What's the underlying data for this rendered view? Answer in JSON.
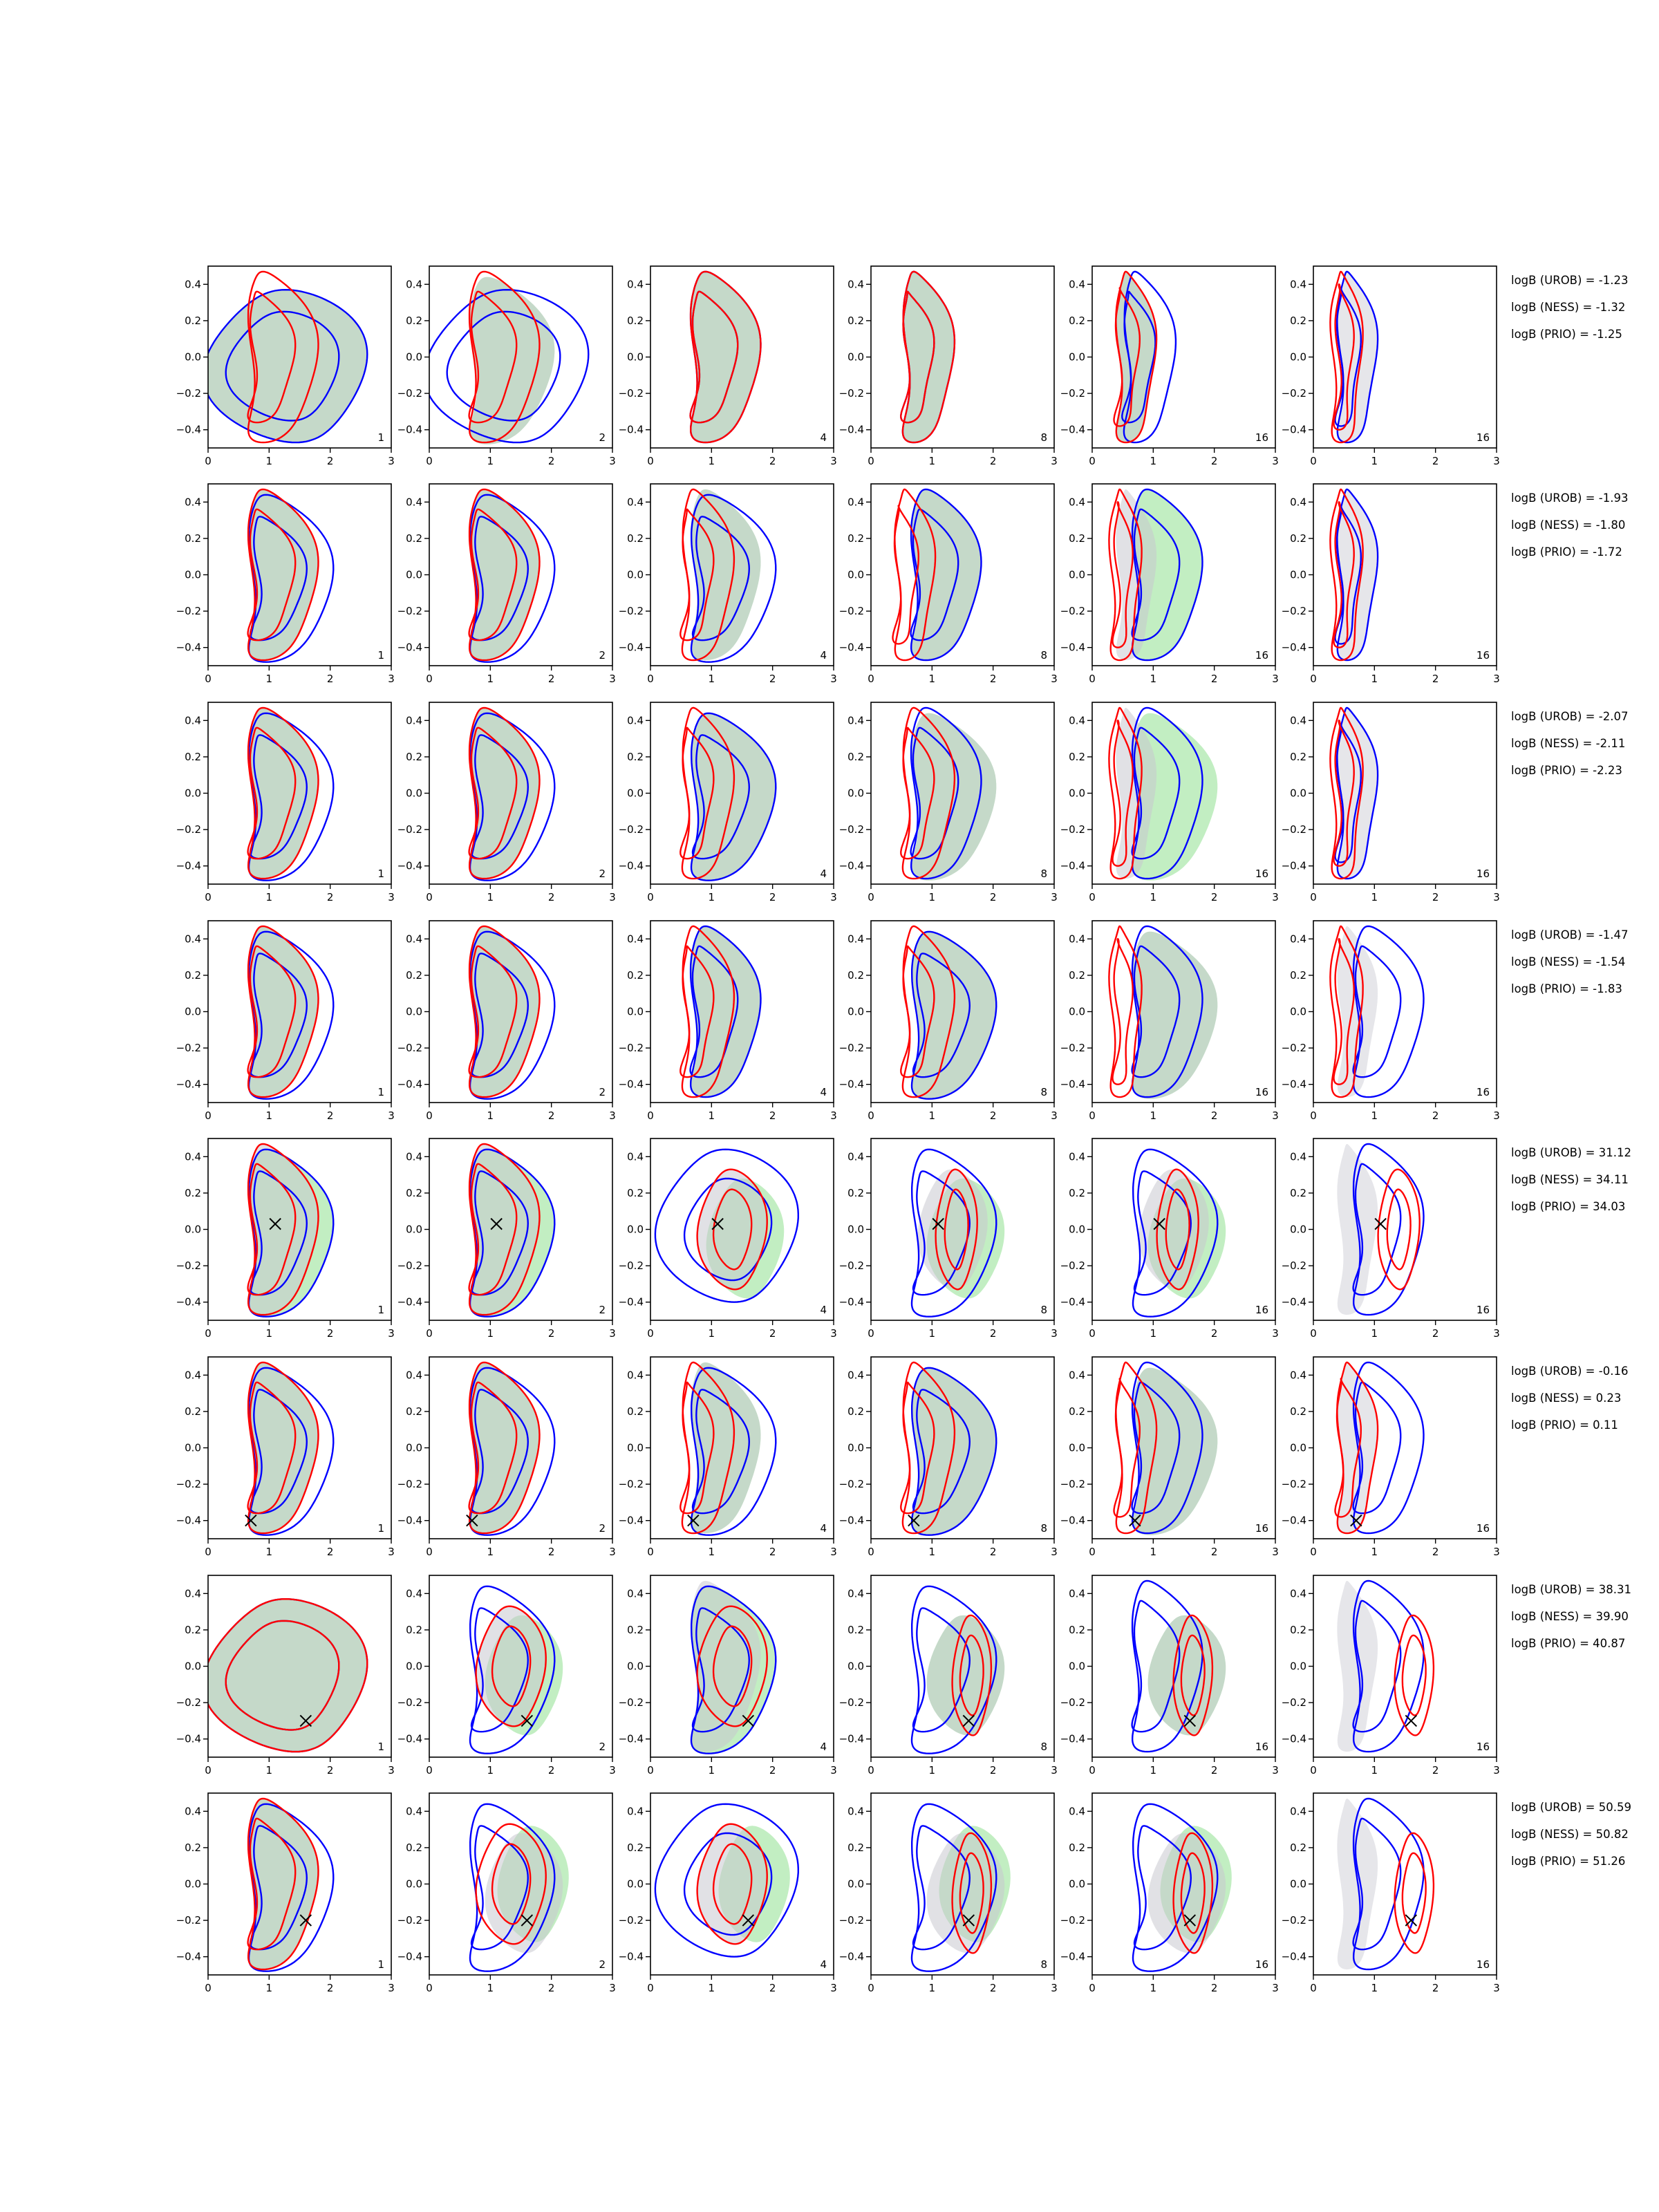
{
  "chart_data": {
    "type": "contour",
    "rows": 8,
    "cols": 6,
    "panel_labels": [
      "1",
      "2",
      "4",
      "8",
      "16",
      "16"
    ],
    "xlim": [
      0,
      3
    ],
    "ylim": [
      -0.5,
      0.5
    ],
    "x_ticks": [
      "0",
      "1",
      "2",
      "3"
    ],
    "y_ticks": [
      "0.4",
      "0.2",
      "0.0",
      "−0.2",
      "−0.4"
    ],
    "y_tick_values": [
      0.4,
      0.2,
      0.0,
      -0.2,
      -0.4
    ],
    "colors": {
      "blue": "#0000ff",
      "red": "#ff0000",
      "green_fill": "#90e090",
      "grey_fill": "#c8c8d0"
    },
    "row_annotations": [
      [
        "logB (UROB) = -1.23",
        "logB (NESS) = -1.32",
        "logB (PRIO) = -1.25"
      ],
      [
        "logB (UROB) = -1.93",
        "logB (NESS) = -1.80",
        "logB (PRIO) = -1.72"
      ],
      [
        "logB (UROB) = -2.07",
        "logB (NESS) = -2.11",
        "logB (PRIO) = -2.23"
      ],
      [
        "logB (UROB) = -1.47",
        "logB (NESS) = -1.54",
        "logB (PRIO) = -1.83"
      ],
      [
        "logB (UROB) = 31.12",
        "logB (NESS) = 34.11",
        "logB (PRIO) = 34.03"
      ],
      [
        "logB (UROB) = -0.16",
        "logB (NESS) = 0.23",
        "logB (PRIO) = 0.11"
      ],
      [
        "logB (UROB) = 38.31",
        "logB (NESS) = 39.90",
        "logB (PRIO) = 40.87"
      ],
      [
        "logB (UROB) = 50.59",
        "logB (NESS) = 50.82",
        "logB (PRIO) = 51.26"
      ]
    ],
    "true_points": [
      null,
      null,
      null,
      null,
      [
        1.1,
        0.03
      ],
      [
        0.7,
        -0.4
      ],
      [
        1.6,
        -0.3
      ],
      [
        1.6,
        -0.2
      ]
    ]
  }
}
